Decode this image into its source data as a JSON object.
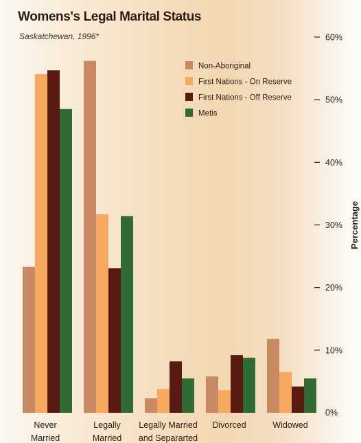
{
  "chart_data": {
    "type": "bar",
    "title": "Womens's Legal Marital Status",
    "subtitle": "Saskatchewan, 1996*",
    "ylabel": "Percentage",
    "xlabel": "",
    "ylim": [
      0,
      60
    ],
    "yticks": [
      "0%",
      "10%",
      "20%",
      "30%",
      "40%",
      "50%",
      "60%"
    ],
    "grid": false,
    "legend_position": "top-right",
    "categories": [
      [
        "Never",
        "Married"
      ],
      [
        "Legally",
        "Married"
      ],
      [
        "Legally Married",
        "and Separarted"
      ],
      [
        "Divorced"
      ],
      [
        "Widowed"
      ]
    ],
    "series": [
      {
        "name": "Non-Aboriginal",
        "color": "#c98a63",
        "values": [
          23.3,
          56.2,
          2.3,
          5.8,
          11.8
        ]
      },
      {
        "name": "First Nations - On Reserve",
        "color": "#f6a85e",
        "values": [
          54.1,
          31.7,
          3.8,
          3.6,
          6.5
        ]
      },
      {
        "name": "First Nations - Off Reserve",
        "color": "#5a1a14",
        "values": [
          54.7,
          23.1,
          8.2,
          9.2,
          4.2
        ]
      },
      {
        "name": "Metis",
        "color": "#2f6b33",
        "values": [
          48.5,
          31.4,
          5.5,
          8.8,
          5.5
        ]
      }
    ]
  }
}
